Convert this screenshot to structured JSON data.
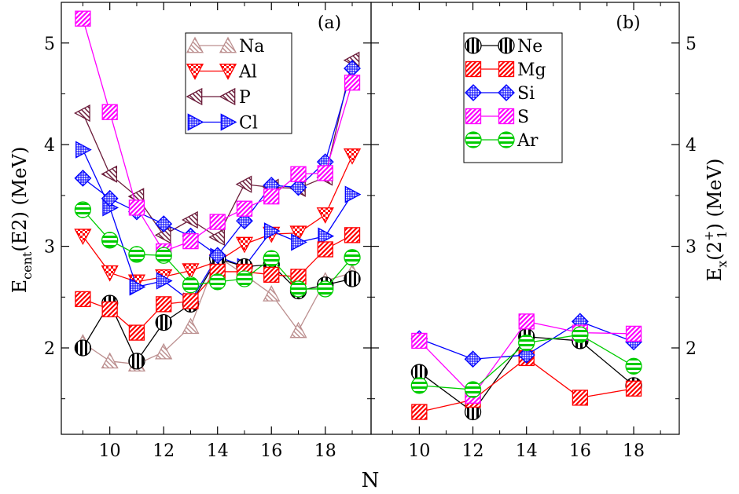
{
  "chart_data": [
    {
      "panel": "a",
      "type": "line",
      "panel_label": "(a)",
      "xlabel": "N",
      "ylabel_main": "E",
      "ylabel_sub": "cent",
      "ylabel_rest": "(E2) (MeV)",
      "xlim": [
        8.2,
        19.7
      ],
      "ylim": [
        1.15,
        5.4
      ],
      "x_ticks": [
        10,
        12,
        14,
        16,
        18
      ],
      "x_tick_labels": [
        "10",
        "12",
        "14",
        "16",
        "18"
      ],
      "y_ticks": [
        2,
        3,
        4,
        5
      ],
      "y_tick_labels": [
        "2",
        "3",
        "4",
        "5"
      ],
      "grid": false,
      "legend_position": "top-center",
      "series": [
        {
          "name": "Na",
          "marker": "triangle-up",
          "pattern": "hatch",
          "color": "#bc8f8f",
          "x": [
            9,
            10,
            11,
            12,
            13,
            14,
            15,
            16,
            17,
            18,
            19
          ],
          "y": [
            2.05,
            1.87,
            1.84,
            1.96,
            2.21,
            2.9,
            2.72,
            2.53,
            2.17,
            2.66,
            2.74
          ]
        },
        {
          "name": "Al",
          "marker": "triangle-down",
          "pattern": "checker",
          "color": "#ff0000",
          "x": [
            9,
            10,
            11,
            12,
            13,
            14,
            15,
            16,
            17,
            18,
            19
          ],
          "y": [
            3.1,
            2.74,
            2.65,
            2.7,
            2.76,
            2.85,
            3.02,
            3.12,
            3.13,
            3.31,
            3.89
          ]
        },
        {
          "name": "P",
          "marker": "triangle-left",
          "pattern": "hatch",
          "color": "#6b1c3a",
          "x": [
            9,
            10,
            11,
            12,
            13,
            14,
            15,
            16,
            17,
            18,
            19
          ],
          "y": [
            4.31,
            3.71,
            3.49,
            3.11,
            3.26,
            3.09,
            3.61,
            3.58,
            3.57,
            3.68,
            4.83
          ]
        },
        {
          "name": "Cl",
          "marker": "triangle-right",
          "pattern": "grid",
          "color": "#0000ff",
          "x": [
            9,
            10,
            11,
            12,
            13,
            14,
            15,
            16,
            17,
            18,
            19
          ],
          "y": [
            3.95,
            3.38,
            2.6,
            2.66,
            2.46,
            2.9,
            2.8,
            3.15,
            3.04,
            3.1,
            3.51
          ]
        },
        {
          "name": "Ne",
          "marker": "circle",
          "pattern": "vstripe",
          "color": "#000000",
          "x": [
            9,
            10,
            11,
            12,
            13,
            14,
            15,
            16,
            17,
            18,
            19
          ],
          "y": [
            2.0,
            2.44,
            1.87,
            2.25,
            2.43,
            2.88,
            2.8,
            2.82,
            2.56,
            2.62,
            2.68
          ]
        },
        {
          "name": "Mg",
          "marker": "square",
          "pattern": "diag",
          "color": "#ff0000",
          "x": [
            9,
            10,
            11,
            12,
            13,
            14,
            15,
            16,
            17,
            18,
            19
          ],
          "y": [
            2.48,
            2.38,
            2.15,
            2.43,
            2.46,
            2.75,
            2.75,
            2.72,
            2.7,
            2.97,
            3.11
          ]
        },
        {
          "name": "Si",
          "marker": "diamond",
          "pattern": "grid",
          "color": "#0000ff",
          "x": [
            9,
            10,
            11,
            12,
            13,
            14,
            15,
            16,
            17,
            18,
            19
          ],
          "y": [
            3.67,
            3.47,
            3.34,
            3.22,
            3.1,
            2.91,
            3.25,
            3.6,
            3.58,
            3.83,
            4.75
          ]
        },
        {
          "name": "S",
          "marker": "square",
          "pattern": "diag",
          "color": "#ff00ff",
          "x": [
            9,
            10,
            11,
            12,
            13,
            14,
            15,
            16,
            17,
            18,
            19
          ],
          "y": [
            5.24,
            4.32,
            3.38,
            2.95,
            3.05,
            3.24,
            3.37,
            3.49,
            3.71,
            3.72,
            4.61
          ]
        },
        {
          "name": "Ar",
          "marker": "circle",
          "pattern": "hstripe",
          "color": "#00cc00",
          "x": [
            9,
            10,
            11,
            12,
            13,
            14,
            15,
            16,
            17,
            18,
            19
          ],
          "y": [
            3.36,
            3.06,
            2.92,
            2.91,
            2.62,
            2.65,
            2.68,
            2.88,
            2.58,
            2.58,
            2.89
          ]
        }
      ]
    },
    {
      "panel": "b",
      "type": "line",
      "panel_label": "(b)",
      "ylabel_main": "E",
      "ylabel_sub": "x",
      "ylabel_rest_a": "(2",
      "ylabel_sup": "+",
      "ylabel_sub2": "1",
      "ylabel_rest_b": ") (MeV)",
      "xlim": [
        8.2,
        19.7
      ],
      "ylim": [
        1.15,
        5.4
      ],
      "x_ticks": [
        10,
        12,
        14,
        16,
        18
      ],
      "x_tick_labels": [
        "10",
        "12",
        "14",
        "16",
        "18"
      ],
      "y_ticks": [
        2,
        3,
        4,
        5
      ],
      "y_tick_labels": [
        "2",
        "3",
        "4",
        "5"
      ],
      "grid": false,
      "legend_position": "top-left",
      "series": [
        {
          "name": "Ne",
          "marker": "circle",
          "pattern": "vstripe",
          "color": "#000000",
          "x": [
            10,
            12,
            14,
            16,
            18
          ],
          "y": [
            1.76,
            1.37,
            2.11,
            2.07,
            1.63
          ]
        },
        {
          "name": "Mg",
          "marker": "square",
          "pattern": "diag",
          "color": "#ff0000",
          "x": [
            10,
            12,
            14,
            16,
            18
          ],
          "y": [
            1.37,
            1.49,
            1.9,
            1.51,
            1.6
          ]
        },
        {
          "name": "Si",
          "marker": "diamond",
          "pattern": "grid",
          "color": "#0000ff",
          "x": [
            10,
            12,
            14,
            16,
            18
          ],
          "y": [
            2.09,
            1.89,
            1.93,
            2.26,
            2.06
          ]
        },
        {
          "name": "S",
          "marker": "square",
          "pattern": "diag",
          "color": "#ff00ff",
          "x": [
            10,
            12,
            14,
            16,
            18
          ],
          "y": [
            2.07,
            1.53,
            2.26,
            2.15,
            2.14
          ]
        },
        {
          "name": "Ar",
          "marker": "circle",
          "pattern": "hstripe",
          "color": "#00cc00",
          "x": [
            10,
            12,
            14,
            16,
            18
          ],
          "y": [
            1.63,
            1.59,
            2.05,
            2.13,
            1.82
          ]
        }
      ]
    }
  ]
}
